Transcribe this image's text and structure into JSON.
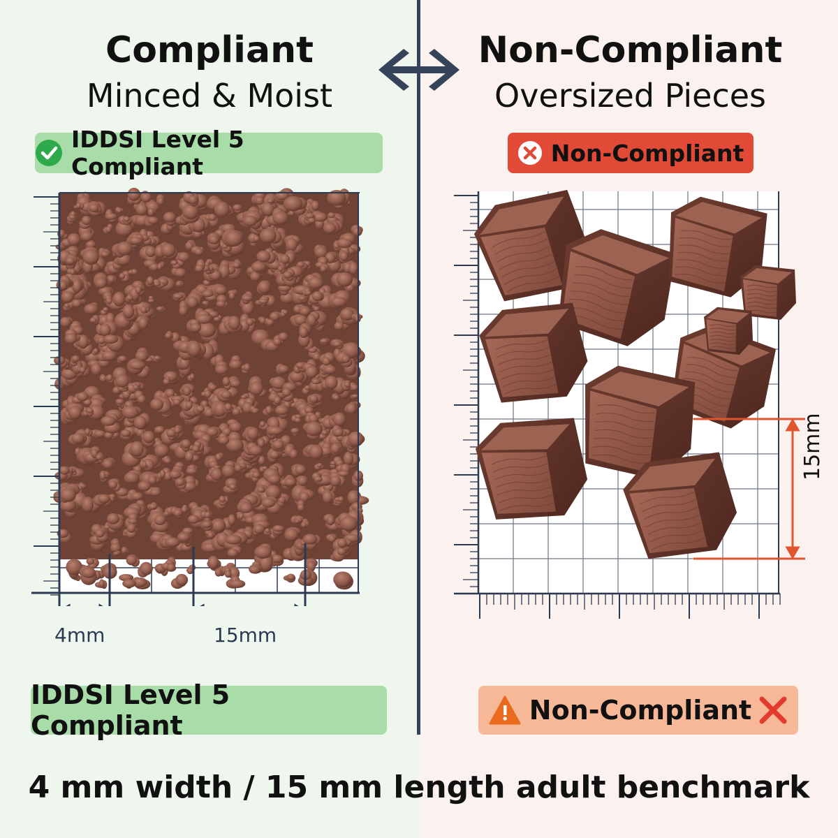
{
  "left": {
    "title": "Compliant",
    "subtitle": "Minced & Moist",
    "top_badge": "IDDSI Level 5 Compliant",
    "measure_small": "4mm",
    "measure_large": "15mm",
    "bottom_badge": "IDDSI Level 5 Compliant"
  },
  "right": {
    "title": "Non-Compliant",
    "subtitle": "Oversized Pieces",
    "top_badge": "Non-Compliant",
    "measure_vertical": "15mm",
    "bottom_badge": "Non-Compliant"
  },
  "footer": "4 mm width / 15 mm length adult benchmark",
  "icons": {
    "top_left_badge": "check-circle-icon",
    "top_right_badge": "x-circle-icon",
    "bottom_right_badge_left": "warning-icon",
    "bottom_right_badge_right": "red-x-icon",
    "center": "double-arrow-icon"
  },
  "colors": {
    "green_badge": "#a8dca8",
    "red_badge": "#e04a36",
    "orange_badge": "#f7b898",
    "navy": "#34425a",
    "meat": "#8a5648",
    "measure_red": "#e0552e"
  }
}
